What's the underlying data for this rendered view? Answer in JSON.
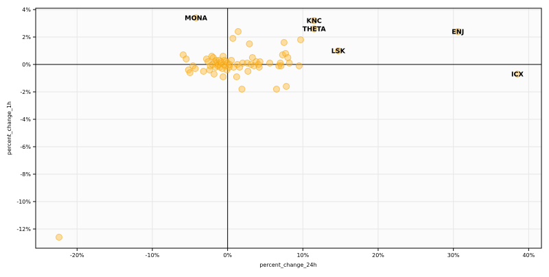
{
  "chart_data": {
    "type": "scatter",
    "title": "",
    "xlabel": "percent_change_24h",
    "ylabel": "percent_change_1h",
    "xlim": [
      -25.5,
      41.7
    ],
    "ylim": [
      -13.4,
      4.1
    ],
    "x_ticks": [
      {
        "value": -20,
        "label": "-20%"
      },
      {
        "value": -10,
        "label": "-10%"
      },
      {
        "value": 0,
        "label": "0%"
      },
      {
        "value": 10,
        "label": "10%"
      },
      {
        "value": 20,
        "label": "20%"
      },
      {
        "value": 30,
        "label": "30%"
      },
      {
        "value": 40,
        "label": "40%"
      }
    ],
    "y_ticks": [
      {
        "value": 4,
        "label": "4%"
      },
      {
        "value": 2,
        "label": "2%"
      },
      {
        "value": 0,
        "label": "0%"
      },
      {
        "value": -2,
        "label": "-2%"
      },
      {
        "value": -4,
        "label": "-4%"
      },
      {
        "value": -6,
        "label": "-6%"
      },
      {
        "value": -8,
        "label": "-8%"
      },
      {
        "value": -10,
        "label": "-10%"
      },
      {
        "value": -12,
        "label": "-12%"
      }
    ],
    "grid": true,
    "reference_lines": {
      "x": 0,
      "y": 0
    },
    "colors": {
      "point_fill": "#ffb733",
      "point_stroke": "#f0a000",
      "grid": "#e6e6e6",
      "plot_bg": "#fbfbfb"
    },
    "labeled_points": [
      {
        "label": "MONA",
        "x": -4.2,
        "y": 3.4
      },
      {
        "label": "KNC",
        "x": 11.5,
        "y": 3.2
      },
      {
        "label": "THETA",
        "x": 11.5,
        "y": 2.6
      },
      {
        "label": "ENJ",
        "x": 30.6,
        "y": 2.4
      },
      {
        "label": "LSK",
        "x": 14.7,
        "y": 1.0
      },
      {
        "label": "ICX",
        "x": 38.5,
        "y": -0.7
      }
    ],
    "points": [
      {
        "x": -22.4,
        "y": -12.6
      },
      {
        "x": -5.9,
        "y": 0.7
      },
      {
        "x": -5.5,
        "y": 0.4
      },
      {
        "x": -5.2,
        "y": -0.4
      },
      {
        "x": -5.0,
        "y": -0.6
      },
      {
        "x": -4.6,
        "y": -0.1
      },
      {
        "x": -4.3,
        "y": -0.3
      },
      {
        "x": -4.2,
        "y": 3.4
      },
      {
        "x": -3.2,
        "y": -0.5
      },
      {
        "x": -2.8,
        "y": 0.4
      },
      {
        "x": -2.6,
        "y": 0.2
      },
      {
        "x": -2.4,
        "y": -0.4
      },
      {
        "x": -2.3,
        "y": -0.1
      },
      {
        "x": -2.1,
        "y": 0.6
      },
      {
        "x": -2.0,
        "y": 0.0
      },
      {
        "x": -1.9,
        "y": 0.5
      },
      {
        "x": -1.8,
        "y": -0.7
      },
      {
        "x": -1.7,
        "y": 0.2
      },
      {
        "x": -1.6,
        "y": -0.2
      },
      {
        "x": -1.5,
        "y": 0.3
      },
      {
        "x": -1.4,
        "y": 0.1
      },
      {
        "x": -1.3,
        "y": -0.1
      },
      {
        "x": -1.2,
        "y": 0.0
      },
      {
        "x": -1.1,
        "y": 0.3
      },
      {
        "x": -1.0,
        "y": -0.2
      },
      {
        "x": -0.9,
        "y": 0.2
      },
      {
        "x": -0.8,
        "y": 0.1
      },
      {
        "x": -0.7,
        "y": -0.3
      },
      {
        "x": -0.6,
        "y": 0.6
      },
      {
        "x": -0.6,
        "y": -0.9
      },
      {
        "x": -0.5,
        "y": 0.0
      },
      {
        "x": -0.4,
        "y": 0.3
      },
      {
        "x": -0.3,
        "y": -0.1
      },
      {
        "x": -0.2,
        "y": 0.2
      },
      {
        "x": -0.1,
        "y": -0.4
      },
      {
        "x": 0.0,
        "y": 0.1
      },
      {
        "x": 0.2,
        "y": -0.2
      },
      {
        "x": 0.3,
        "y": 0.0
      },
      {
        "x": 0.5,
        "y": 0.3
      },
      {
        "x": 0.7,
        "y": 1.9
      },
      {
        "x": 0.8,
        "y": -0.2
      },
      {
        "x": 1.2,
        "y": -0.9
      },
      {
        "x": 1.3,
        "y": 0.0
      },
      {
        "x": 1.4,
        "y": 2.4
      },
      {
        "x": 1.6,
        "y": -0.2
      },
      {
        "x": 1.9,
        "y": -1.8
      },
      {
        "x": 2.0,
        "y": 0.1
      },
      {
        "x": 2.6,
        "y": 0.1
      },
      {
        "x": 2.7,
        "y": -0.5
      },
      {
        "x": 2.9,
        "y": 1.5
      },
      {
        "x": 3.1,
        "y": 0.0
      },
      {
        "x": 3.3,
        "y": 0.5
      },
      {
        "x": 3.5,
        "y": -0.1
      },
      {
        "x": 3.8,
        "y": 0.2
      },
      {
        "x": 4.1,
        "y": 0.0
      },
      {
        "x": 4.2,
        "y": -0.2
      },
      {
        "x": 4.3,
        "y": 0.2
      },
      {
        "x": 5.6,
        "y": 0.1
      },
      {
        "x": 6.5,
        "y": -1.8
      },
      {
        "x": 6.8,
        "y": -0.1
      },
      {
        "x": 7.0,
        "y": 0.1
      },
      {
        "x": 7.1,
        "y": -0.1
      },
      {
        "x": 7.3,
        "y": 0.7
      },
      {
        "x": 7.5,
        "y": 1.6
      },
      {
        "x": 7.7,
        "y": 0.8
      },
      {
        "x": 7.8,
        "y": -1.6
      },
      {
        "x": 8.0,
        "y": 0.5
      },
      {
        "x": 8.2,
        "y": 0.1
      },
      {
        "x": 9.5,
        "y": -0.1
      },
      {
        "x": 9.7,
        "y": 1.8
      },
      {
        "x": 11.5,
        "y": 3.2
      },
      {
        "x": 11.5,
        "y": 2.6
      },
      {
        "x": 14.7,
        "y": 1.0
      },
      {
        "x": 30.6,
        "y": 2.4
      },
      {
        "x": 38.5,
        "y": -0.7
      }
    ]
  }
}
